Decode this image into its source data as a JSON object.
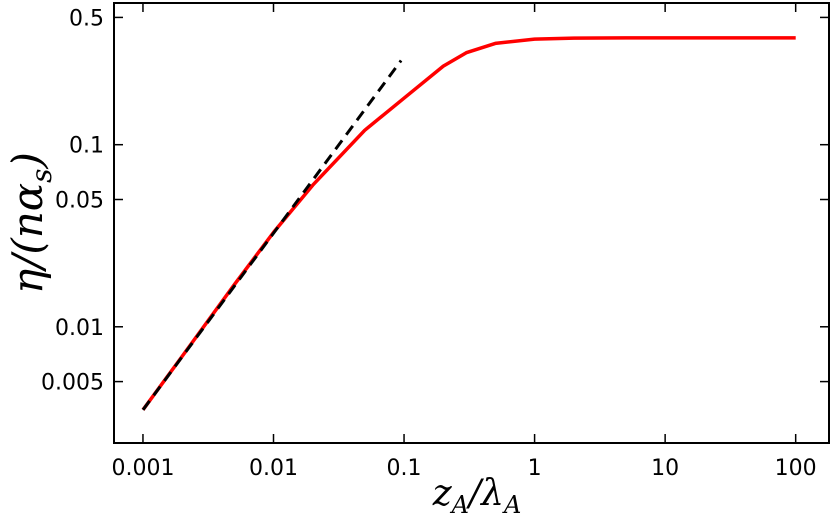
{
  "chart_data": {
    "type": "line",
    "xscale": "log",
    "yscale": "log",
    "xlim": [
      0.0006,
      180
    ],
    "ylim": [
      0.0023,
      0.6
    ],
    "xlabel": "z_A/λ_A",
    "ylabel": "η/(nα_s)",
    "xticks": [
      {
        "value": 0.001,
        "label": "0.001"
      },
      {
        "value": 0.01,
        "label": "0.01"
      },
      {
        "value": 0.1,
        "label": "0.1"
      },
      {
        "value": 1,
        "label": "1"
      },
      {
        "value": 10,
        "label": "10"
      },
      {
        "value": 100,
        "label": "100"
      }
    ],
    "yticks": [
      {
        "value": 0.005,
        "label": "0.005"
      },
      {
        "value": 0.01,
        "label": "0.01"
      },
      {
        "value": 0.05,
        "label": "0.05"
      },
      {
        "value": 0.1,
        "label": "0.1"
      },
      {
        "value": 0.5,
        "label": "0.5"
      }
    ],
    "series": [
      {
        "color": "#ff0000",
        "style": "solid",
        "x": [
          0.001,
          0.002,
          0.005,
          0.01,
          0.02,
          0.05,
          0.1,
          0.2,
          0.3,
          0.5,
          1,
          2,
          5,
          10,
          30,
          100
        ],
        "y": [
          0.0035,
          0.0069,
          0.017,
          0.033,
          0.06,
          0.12,
          0.18,
          0.27,
          0.32,
          0.36,
          0.38,
          0.385,
          0.386,
          0.386,
          0.386,
          0.386
        ]
      },
      {
        "color": "#000000",
        "style": "dashed",
        "x": [
          0.001,
          0.095
        ],
        "y": [
          0.0035,
          0.29
        ]
      }
    ],
    "grid": false,
    "legend": null
  }
}
